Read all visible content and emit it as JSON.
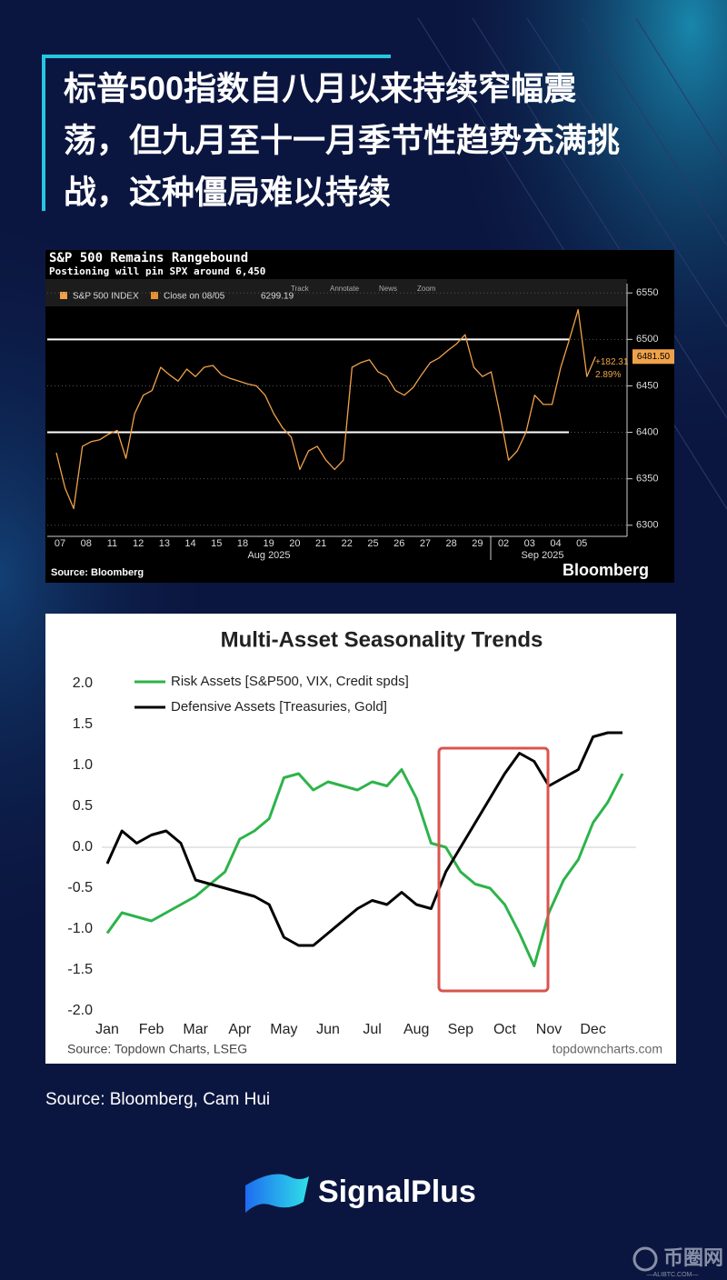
{
  "header": {
    "title_lines": [
      "标普500指数自八月以来持续窄幅震",
      "荡，但九月至十一月季节性趋势充满挑",
      "战，这种僵局难以持续"
    ]
  },
  "chart_data": [
    {
      "type": "line",
      "title": "S&P 500 Remains Rangebound",
      "subtitle": "Postioning will pin SPX around 6,450",
      "toolbar": [
        "Track",
        "Annotate",
        "News",
        "Zoom"
      ],
      "reference_label": "Close on 08/05",
      "reference_value": 6299.19,
      "reference_color": "#e8922e",
      "categories": [
        "07",
        null,
        null,
        "08",
        null,
        null,
        "11",
        null,
        null,
        "12",
        null,
        null,
        "13",
        null,
        null,
        "14",
        null,
        null,
        "15",
        null,
        null,
        "18",
        null,
        null,
        "19",
        null,
        null,
        "20",
        null,
        null,
        "21",
        null,
        null,
        "22",
        null,
        null,
        "25",
        null,
        null,
        "26",
        null,
        null,
        "27",
        null,
        null,
        "28",
        null,
        null,
        "29",
        null,
        null,
        "02",
        null,
        null,
        "03",
        null,
        null,
        "04",
        null,
        null,
        "05",
        null,
        null
      ],
      "series": [
        {
          "name": "S&P 500 INDEX",
          "color": "#f0a24a",
          "values": [
            6378,
            6340,
            6318,
            6385,
            6390,
            6392,
            6398,
            6402,
            6372,
            6420,
            6440,
            6445,
            6470,
            6462,
            6455,
            6468,
            6460,
            6470,
            6472,
            6462,
            6458,
            6455,
            6452,
            6450,
            6440,
            6420,
            6405,
            6395,
            6360,
            6380,
            6385,
            6370,
            6360,
            6370,
            6470,
            6475,
            6478,
            6465,
            6460,
            6445,
            6440,
            6448,
            6462,
            6475,
            6480,
            6488,
            6495,
            6505,
            6470,
            6460,
            6465,
            6420,
            6370,
            6380,
            6400,
            6440,
            6430,
            6430,
            6470,
            6500,
            6532,
            6460,
            6481.5
          ]
        }
      ],
      "hlines": [
        6500,
        6400
      ],
      "annotations": [
        "6481.50",
        "+182.31",
        "2.89%"
      ],
      "month_labels": [
        "Aug 2025",
        "Sep 2025"
      ],
      "ylim": [
        6290,
        6560
      ],
      "yticks": [
        6300,
        6350,
        6400,
        6450,
        6500,
        6550
      ],
      "grid": true,
      "source": "Source: Bloomberg",
      "brand": "Bloomberg"
    },
    {
      "type": "line",
      "title": "Multi-Asset Seasonality Trends",
      "categories": [
        "Jan",
        null,
        null,
        "Feb",
        null,
        null,
        "Mar",
        null,
        null,
        "Apr",
        null,
        null,
        "May",
        null,
        null,
        "Jun",
        null,
        null,
        "Jul",
        null,
        null,
        "Aug",
        null,
        null,
        "Sep",
        null,
        null,
        "Oct",
        null,
        null,
        "Nov",
        null,
        null,
        "Dec",
        null,
        null
      ],
      "series": [
        {
          "name": "Risk Assets [S&P500, VIX, Credit spds]",
          "color": "#2db34a",
          "values": [
            -1.05,
            -0.8,
            -0.85,
            -0.9,
            -0.8,
            -0.7,
            -0.6,
            -0.45,
            -0.3,
            0.1,
            0.2,
            0.35,
            0.85,
            0.9,
            0.7,
            0.8,
            0.75,
            0.7,
            0.8,
            0.75,
            0.95,
            0.6,
            0.05,
            0.0,
            -0.3,
            -0.45,
            -0.5,
            -0.7,
            -1.05,
            -1.45,
            -0.8,
            -0.4,
            -0.15,
            0.3,
            0.55,
            0.9
          ]
        },
        {
          "name": "Defensive Assets [Treasuries, Gold]",
          "color": "#000000",
          "values": [
            -0.2,
            0.2,
            0.05,
            0.15,
            0.2,
            0.05,
            -0.4,
            -0.45,
            -0.5,
            -0.55,
            -0.6,
            -0.7,
            -1.1,
            -1.2,
            -1.2,
            -1.05,
            -0.9,
            -0.75,
            -0.65,
            -0.7,
            -0.55,
            -0.7,
            -0.75,
            -0.3,
            0.0,
            0.3,
            0.6,
            0.9,
            1.15,
            1.05,
            0.75,
            0.85,
            0.95,
            1.35,
            1.4,
            1.4
          ]
        }
      ],
      "ylim": [
        -2,
        2
      ],
      "yticks": [
        {
          "value": -2,
          "label": "-2.0"
        },
        -1.5,
        {
          "value": -1,
          "label": "-1.0"
        },
        -0.5,
        {
          "value": 0,
          "label": "0.0"
        },
        0.5,
        {
          "value": 1,
          "label": "1.0"
        },
        1.5,
        {
          "value": 2,
          "label": "2.0"
        }
      ],
      "zero_line": true,
      "source": "Source: Topdown Charts, LSEG",
      "credit": "topdowncharts.com"
    }
  ],
  "footer": {
    "source": "Source: Bloomberg, Cam Hui",
    "brand": "SignalPlus",
    "watermark": "币圈网",
    "watermark_url": "—ALIBTC.COM—"
  }
}
